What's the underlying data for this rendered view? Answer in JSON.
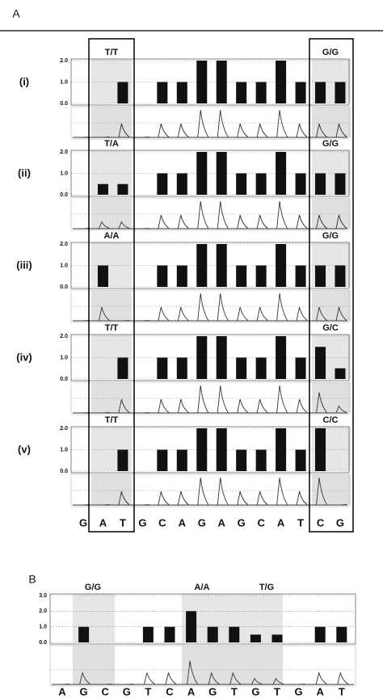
{
  "chart_data": [
    {
      "type": "bar",
      "panel_label": "A",
      "row_label": "(i)",
      "annotations": [
        "T/T",
        "G/G"
      ],
      "color": "#111111",
      "values": [
        0,
        0,
        1,
        0,
        1,
        1,
        2,
        2,
        1,
        1,
        2,
        1,
        1,
        1
      ],
      "ylim": [
        0,
        2
      ],
      "yticks": [
        {
          "value": 0,
          "label": "0.0"
        },
        {
          "value": 1,
          "label": "1.0"
        },
        {
          "value": 2,
          "label": "2.0"
        }
      ]
    },
    {
      "type": "bar",
      "row_label": "(ii)",
      "annotations": [
        "T/A",
        "G/G"
      ],
      "color": "#111111",
      "values": [
        0,
        0.5,
        0.5,
        0,
        1,
        1,
        2,
        2,
        1,
        1,
        2,
        1,
        1,
        1
      ],
      "ylim": [
        0,
        2
      ],
      "yticks": [
        {
          "value": 0,
          "label": "0.0"
        },
        {
          "value": 1,
          "label": "1.0"
        },
        {
          "value": 2,
          "label": "2.0"
        }
      ]
    },
    {
      "type": "bar",
      "row_label": "(iii)",
      "annotations": [
        "A/A",
        "G/G"
      ],
      "color": "#111111",
      "values": [
        0,
        1,
        0,
        0,
        1,
        1,
        2,
        2,
        1,
        1,
        2,
        1,
        1,
        1
      ],
      "ylim": [
        0,
        2
      ],
      "yticks": [
        {
          "value": 0,
          "label": "0.0"
        },
        {
          "value": 1,
          "label": "1.0"
        },
        {
          "value": 2,
          "label": "2.0"
        }
      ]
    },
    {
      "type": "bar",
      "row_label": "(iv)",
      "annotations": [
        "T/T",
        "G/C"
      ],
      "color": "#111111",
      "values": [
        0,
        0,
        1,
        0,
        1,
        1,
        2,
        2,
        1,
        1,
        2,
        1,
        1.5,
        0.5
      ],
      "ylim": [
        0,
        2
      ],
      "yticks": [
        {
          "value": 0,
          "label": "0.0"
        },
        {
          "value": 1,
          "label": "1.0"
        },
        {
          "value": 2,
          "label": "2.0"
        }
      ]
    },
    {
      "type": "bar",
      "row_label": "(v)",
      "annotations": [
        "T/T",
        "C/C"
      ],
      "color": "#111111",
      "categories": [
        "G",
        "A",
        "T",
        "G",
        "C",
        "A",
        "G",
        "A",
        "G",
        "C",
        "A",
        "T",
        "C",
        "G"
      ],
      "values": [
        0,
        0,
        1,
        0,
        1,
        1,
        2,
        2,
        1,
        1,
        2,
        1,
        2,
        0
      ],
      "ylim": [
        0,
        2
      ],
      "yticks": [
        {
          "value": 0,
          "label": "0.0"
        },
        {
          "value": 1,
          "label": "1.0"
        },
        {
          "value": 2,
          "label": "2.0"
        }
      ]
    },
    {
      "type": "bar",
      "panel_label": "B",
      "annotations": [
        "G/G",
        "A/A",
        "T/G"
      ],
      "color": "#111111",
      "categories": [
        "A",
        "G",
        "C",
        "G",
        "T",
        "C",
        "A",
        "G",
        "T",
        "G",
        "T",
        "G",
        "A",
        "T"
      ],
      "values": [
        0,
        1,
        0,
        0,
        1,
        1,
        2,
        1,
        1,
        0.5,
        0.5,
        0,
        1,
        1
      ],
      "ylim": [
        0,
        3
      ],
      "yticks": [
        {
          "value": 0,
          "label": "0.0"
        },
        {
          "value": 1,
          "label": "1.0"
        },
        {
          "value": 2,
          "label": "2.0"
        },
        {
          "value": 3,
          "label": "3.0"
        }
      ]
    }
  ]
}
